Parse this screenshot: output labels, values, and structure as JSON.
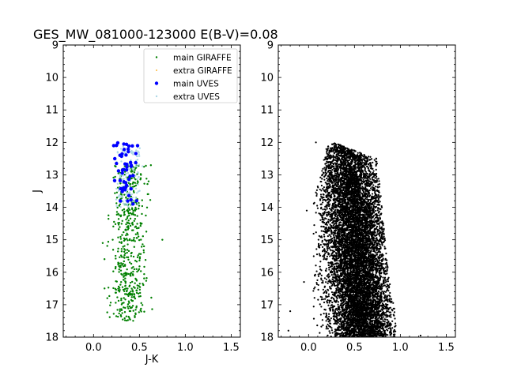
{
  "chart_data": [
    {
      "type": "scatter",
      "title": "GES_MW_081000-123000 E(B-V)=0.08",
      "xlabel": "J-K",
      "ylabel": "J",
      "xlim": [
        -0.33,
        1.6
      ],
      "ylim": [
        18,
        9
      ],
      "y_inverted": true,
      "xticks": [
        "0.0",
        "0.5",
        "1.0",
        "1.5"
      ],
      "xtick_values": [
        0.0,
        0.5,
        1.0,
        1.5
      ],
      "yticks": [
        "9",
        "10",
        "11",
        "12",
        "13",
        "14",
        "15",
        "16",
        "17",
        "18"
      ],
      "ytick_values": [
        9,
        10,
        11,
        12,
        13,
        14,
        15,
        16,
        17,
        18
      ],
      "legend_position": "top-right",
      "series": [
        {
          "name": "main GIRAFFE",
          "color": "#008000",
          "marker_size": 1.2,
          "distribution": {
            "count": 520,
            "x_center": 0.38,
            "x_spread": 0.09,
            "y_range": [
              12.7,
              17.5
            ],
            "x_range": [
              0.1,
              0.75
            ]
          },
          "points": [
            [
              0.1,
              15.1
            ],
            [
              0.75,
              15.0
            ],
            [
              0.12,
              16.5
            ],
            [
              0.15,
              16.8
            ],
            [
              0.55,
              12.75
            ],
            [
              0.6,
              13.2
            ]
          ]
        },
        {
          "name": "extra GIRAFFE",
          "color": "#ffa500",
          "marker_size": 0.6,
          "distribution": {
            "count": 0
          },
          "points": []
        },
        {
          "name": "main UVES",
          "color": "#0000ff",
          "marker_size": 2.2,
          "distribution": {
            "count": 45,
            "x_center": 0.34,
            "x_spread": 0.08,
            "y_range": [
              12.0,
              13.9
            ],
            "x_range": [
              0.22,
              0.5
            ]
          },
          "points": [
            [
              0.22,
              12.1
            ],
            [
              0.33,
              12.05
            ],
            [
              0.48,
              12.1
            ],
            [
              0.25,
              12.65
            ],
            [
              0.36,
              12.85
            ],
            [
              0.47,
              13.8
            ]
          ]
        },
        {
          "name": "extra UVES",
          "color": "#add8e6",
          "marker_size": 1.2,
          "distribution": {
            "count": 160,
            "x_center": 0.37,
            "x_spread": 0.08,
            "y_range": [
              12.1,
              14.0
            ],
            "x_range": [
              0.22,
              0.55
            ]
          },
          "points": [
            [
              0.3,
              12.2
            ],
            [
              0.42,
              12.3
            ],
            [
              0.34,
              12.7
            ]
          ]
        }
      ]
    },
    {
      "type": "scatter",
      "title": "",
      "xlabel": "",
      "ylabel": "",
      "xlim": [
        -0.33,
        1.6
      ],
      "ylim": [
        18,
        9
      ],
      "y_inverted": true,
      "xticks": [
        "0.0",
        "0.5",
        "1.0",
        "1.5"
      ],
      "xtick_values": [
        0.0,
        0.5,
        1.0,
        1.5
      ],
      "yticks": [
        "9",
        "10",
        "11",
        "12",
        "13",
        "14",
        "15",
        "16",
        "17",
        "18"
      ],
      "ytick_values": [
        9,
        10,
        11,
        12,
        13,
        14,
        15,
        16,
        17,
        18
      ],
      "series": [
        {
          "color": "#000000",
          "marker_size": 1.1,
          "distribution": {
            "count": 9000,
            "upper_edge": [
              [
                0.2,
                12.1
              ],
              [
                0.3,
                12.0
              ],
              [
                0.45,
                12.2
              ],
              [
                0.55,
                12.3
              ],
              [
                0.62,
                12.4
              ],
              [
                0.75,
                12.5
              ],
              [
                0.85,
                15.5
              ],
              [
                0.95,
                17.4
              ]
            ],
            "x_range": [
              0.05,
              1.05
            ],
            "y_range": [
              12.0,
              18.0
            ]
          },
          "points": [
            [
              -0.02,
              14.1
            ],
            [
              -0.2,
              17.2
            ],
            [
              -0.22,
              17.8
            ],
            [
              1.22,
              17.95
            ],
            [
              0.08,
              12.0
            ],
            [
              -0.05,
              16.3
            ]
          ]
        }
      ]
    }
  ]
}
